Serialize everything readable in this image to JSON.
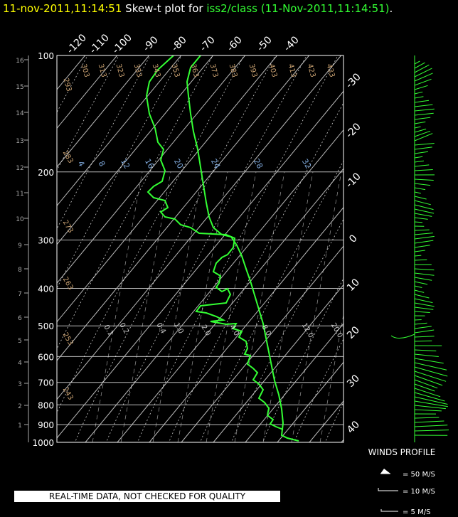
{
  "title": {
    "timestamp": "11-nov-2011,11:14:51",
    "label": "Skew-t plot for",
    "source": "iss2/class (11-Nov-2011,11:14:51)",
    "end": "."
  },
  "quality_note": "REAL-TIME DATA, NOT CHECKED FOR QUALITY",
  "colors": {
    "trace": "#33ff33",
    "white": "#ffffff",
    "yellow": "#ffff00",
    "grid": "#bbbbbb",
    "adiabat": "#c8a070",
    "mixing": "#7da7d9"
  },
  "chart_data": {
    "type": "line",
    "pressure_levels": [
      "100",
      "200",
      "300",
      "400",
      "500",
      "600",
      "700",
      "800",
      "900",
      "1000"
    ],
    "height_km": [
      "1",
      "2",
      "3",
      "4",
      "5",
      "6",
      "7",
      "8",
      "9",
      "10",
      "11",
      "12",
      "13",
      "14",
      "15",
      "16"
    ],
    "temperature_top_labels": [
      "-120",
      "-110",
      "-100",
      "-90",
      "-80",
      "-70",
      "-60",
      "-50",
      "-40"
    ],
    "temperature_right_labels": [
      "-30",
      "-20",
      "-10",
      "0",
      "10",
      "20",
      "30",
      "40"
    ],
    "dry_adiabat_labels": [
      "293",
      "303",
      "313",
      "323",
      "333",
      "343",
      "353",
      "363",
      "373",
      "383",
      "393",
      "403",
      "413",
      "423",
      "433",
      "283",
      "273",
      "263",
      "253",
      "243"
    ],
    "mixing_ratio_upper_labels": [
      "4",
      "8",
      "12",
      "16",
      "20",
      "24",
      "28",
      "32"
    ],
    "mixing_ratio_lower_labels": [
      "0.1",
      "0.2",
      "0.4",
      "1.0",
      "2.0",
      "4.0",
      "8.0",
      "12.0",
      "20.0"
    ],
    "winds_profile": {
      "title": "WINDS PROFILE",
      "legend": [
        "= 50 M/S",
        "= 10 M/S",
        "= 5 M/S"
      ]
    }
  }
}
